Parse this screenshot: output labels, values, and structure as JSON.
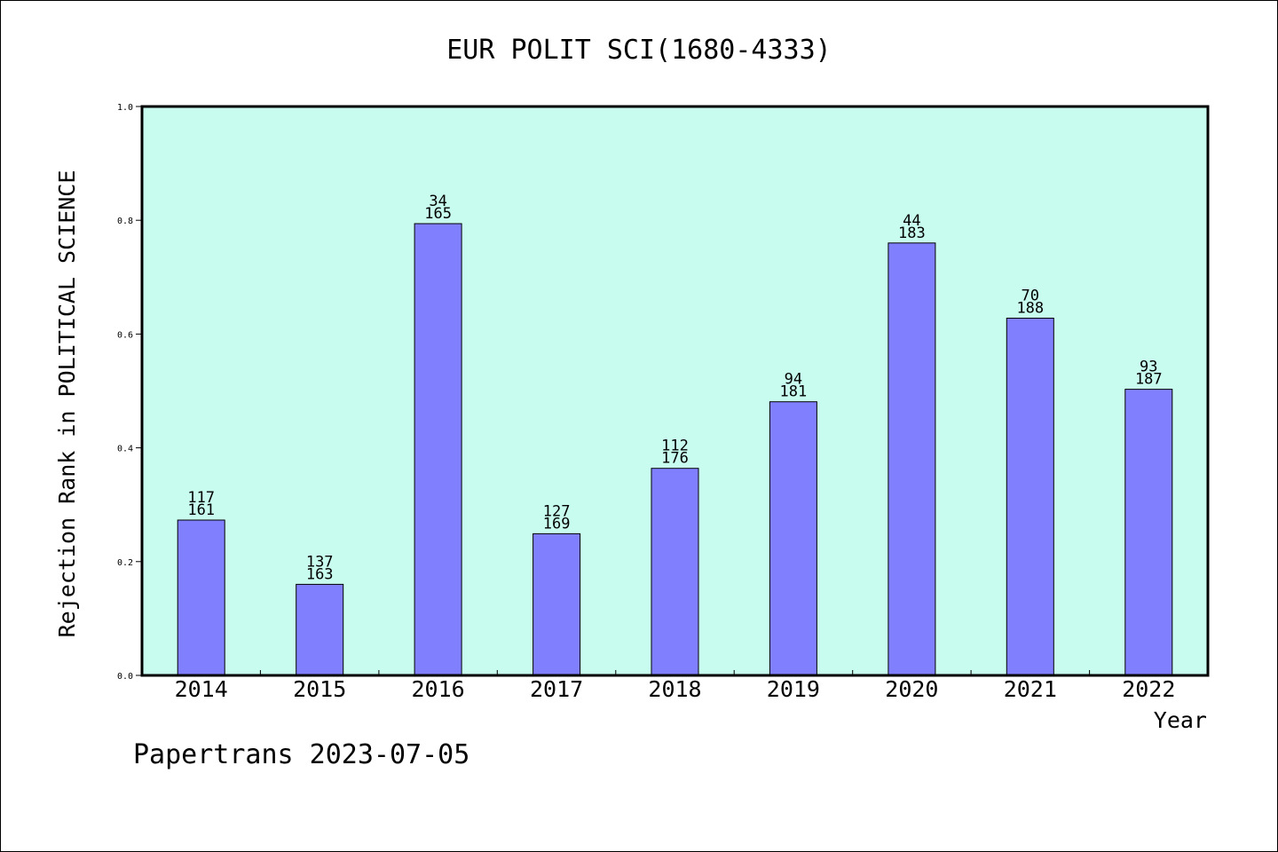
{
  "chart_data": {
    "type": "bar",
    "title": "EUR POLIT SCI(1680-4333)",
    "xlabel": "Year",
    "ylabel": "Rejection Rank in POLITICAL SCIENCE",
    "ylim": [
      0,
      1.0
    ],
    "yticks": [
      "0.0",
      "0.2",
      "0.4",
      "0.6",
      "0.8",
      "1.0"
    ],
    "grid": false,
    "categories": [
      "2014",
      "2015",
      "2016",
      "2017",
      "2018",
      "2019",
      "2020",
      "2021",
      "2022"
    ],
    "values": [
      0.273,
      0.16,
      0.794,
      0.249,
      0.364,
      0.481,
      0.76,
      0.628,
      0.503
    ],
    "rank_labels": [
      "117",
      "137",
      "34",
      "127",
      "112",
      "94",
      "44",
      "70",
      "93"
    ],
    "total_labels": [
      "161",
      "163",
      "165",
      "169",
      "176",
      "181",
      "183",
      "188",
      "187"
    ],
    "colors": {
      "plot_background": "#c8fcee",
      "bar_fill": "#8080ff",
      "bar_edge": "#000000"
    }
  },
  "footer": {
    "text": "Papertrans 2023-07-05"
  }
}
